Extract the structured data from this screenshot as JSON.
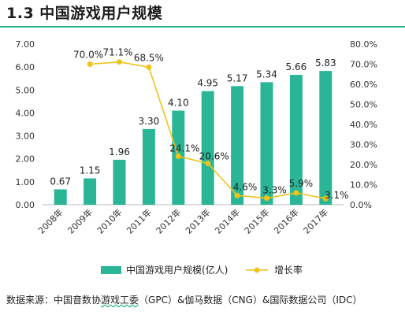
{
  "heading": {
    "number": "1.3",
    "text": "中国游戏用户规模"
  },
  "source": {
    "prefix": "数据来源：中国音数协",
    "underlined": "游戏工委",
    "suffix": "（GPC）&伽马数据（CNG）&国际数据公司（IDC）"
  },
  "colors": {
    "bar": "#2bb597",
    "line": "#f0c419",
    "marker": "#f0c419",
    "rule": "#2cb38f"
  },
  "chart_data": {
    "type": "bar",
    "categories": [
      "2008年",
      "2009年",
      "2010年",
      "2011年",
      "2012年",
      "2013年",
      "2014年",
      "2015年",
      "2016年",
      "2017年"
    ],
    "series": [
      {
        "name": "中国游戏用户规模(亿人)",
        "type": "bar",
        "axis": "left",
        "values": [
          0.67,
          1.15,
          1.96,
          3.3,
          4.1,
          4.95,
          5.17,
          5.34,
          5.66,
          5.83
        ],
        "labels": [
          "0.67",
          "1.15",
          "1.96",
          "3.30",
          "4.10",
          "4.95",
          "5.17",
          "5.34",
          "5.66",
          "5.83"
        ]
      },
      {
        "name": "增长率",
        "type": "line",
        "axis": "right",
        "values": [
          null,
          70.0,
          71.1,
          68.5,
          24.1,
          20.6,
          4.6,
          3.3,
          5.9,
          3.1
        ],
        "labels": [
          null,
          "70.0%",
          "71.1%",
          "68.5%",
          "24.1%",
          "20.6%",
          "4.6%",
          "3.3%",
          "5.9%",
          "3.1%"
        ]
      }
    ],
    "y_left": {
      "range": [
        0,
        7
      ],
      "ticks": [
        "0.00",
        "1.00",
        "2.00",
        "3.00",
        "4.00",
        "5.00",
        "6.00",
        "7.00"
      ]
    },
    "y_right": {
      "range": [
        0,
        80
      ],
      "ticks": [
        "0.0%",
        "10.0%",
        "20.0%",
        "30.0%",
        "40.0%",
        "50.0%",
        "60.0%",
        "70.0%",
        "80.0%"
      ]
    },
    "grid": false,
    "legend": {
      "position": "bottom",
      "items": [
        "中国游戏用户规模(亿人)",
        "增长率"
      ]
    }
  }
}
